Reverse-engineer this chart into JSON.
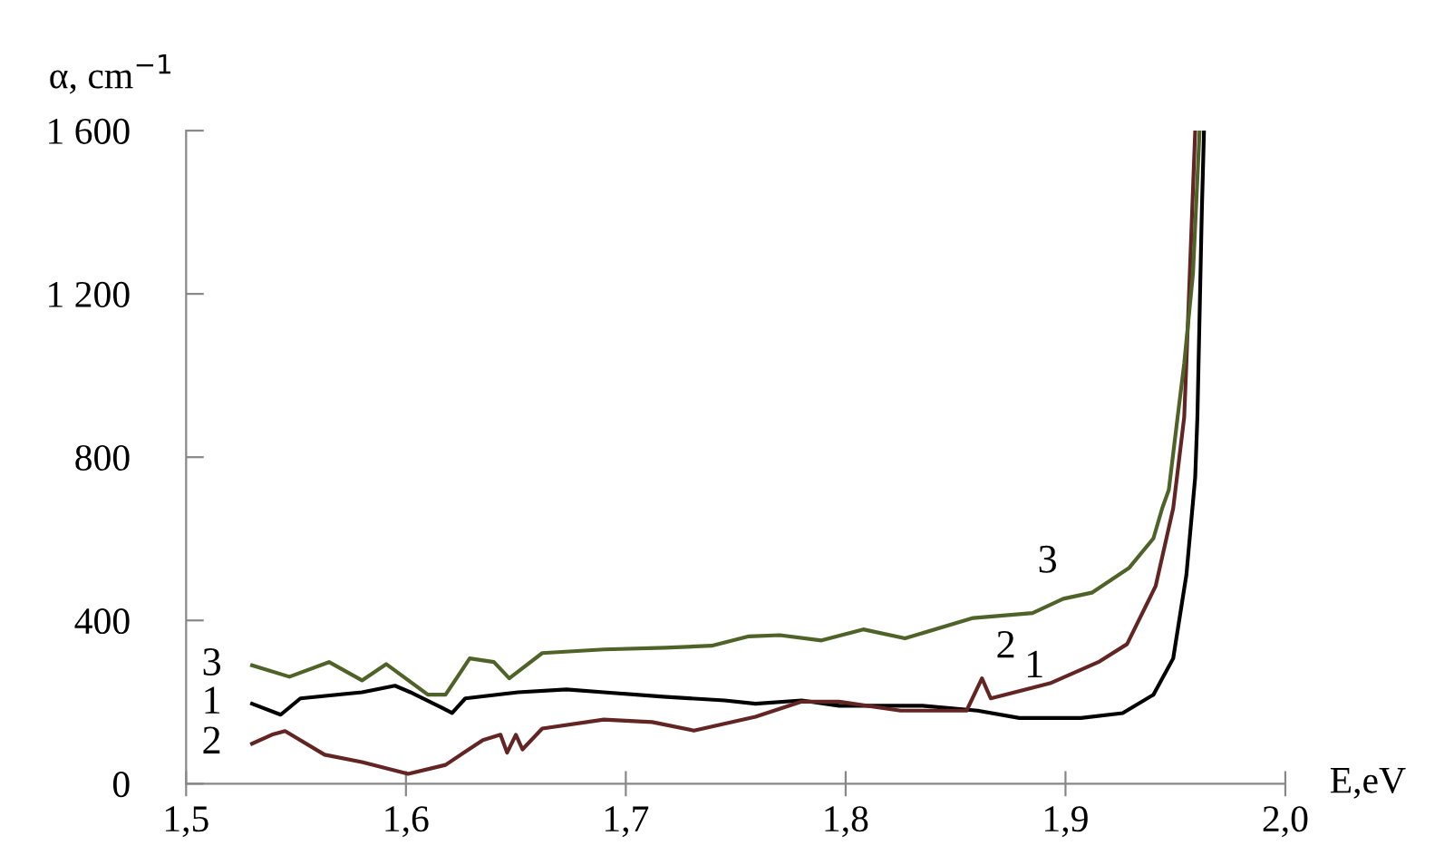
{
  "chart_data": {
    "type": "line",
    "xlabel": "E,eV",
    "ylabel": "α, cm$^{−1}$",
    "xlim": [
      1.5,
      2.0
    ],
    "ylim": [
      0,
      1600
    ],
    "xticks": [
      {
        "value": 1.5,
        "label": "1,5"
      },
      {
        "value": 1.6,
        "label": "1,6"
      },
      {
        "value": 1.7,
        "label": "1,7"
      },
      {
        "value": 1.8,
        "label": "1,8"
      },
      {
        "value": 1.9,
        "label": "1,9"
      },
      {
        "value": 2.0,
        "label": "2,0"
      }
    ],
    "yticks": [
      0,
      400,
      800,
      {
        "value": 1200,
        "label": "1 200"
      },
      {
        "value": 1600,
        "label": "1 600"
      }
    ],
    "grid": false,
    "legend": false,
    "marker": "none",
    "line_style": "solid",
    "series": [
      {
        "name": "1",
        "color": "#000000",
        "x": [
          1.53,
          1.543,
          1.552,
          1.58,
          1.595,
          1.602,
          1.616,
          1.621,
          1.627,
          1.651,
          1.673,
          1.69,
          1.717,
          1.745,
          1.759,
          1.78,
          1.797,
          1.835,
          1.86,
          1.879,
          1.907,
          1.926,
          1.94,
          1.949,
          1.955,
          1.959,
          1.96,
          1.962,
          1.963
        ],
        "values": [
          196,
          169,
          209,
          224,
          240,
          224,
          187,
          173,
          209,
          224,
          231,
          224,
          213,
          204,
          196,
          204,
          191,
          191,
          179,
          161,
          161,
          173,
          218,
          307,
          512,
          751,
          898,
          1400,
          1600
        ]
      },
      {
        "name": "2",
        "color": "#632523",
        "x": [
          1.53,
          1.539,
          1.545,
          1.563,
          1.58,
          1.601,
          1.618,
          1.635,
          1.643,
          1.646,
          1.65,
          1.653,
          1.662,
          1.69,
          1.712,
          1.731,
          1.759,
          1.78,
          1.797,
          1.825,
          1.855,
          1.862,
          1.866,
          1.893,
          1.915,
          1.928,
          1.941,
          1.949,
          1.954,
          1.955,
          1.959
        ],
        "values": [
          98,
          120,
          129,
          71,
          53,
          24,
          46,
          107,
          120,
          76,
          120,
          84,
          135,
          157,
          151,
          130,
          164,
          201,
          201,
          179,
          179,
          258,
          209,
          246,
          298,
          342,
          484,
          675,
          898,
          1031,
          1600
        ]
      },
      {
        "name": "3",
        "color": "#4f6228",
        "x": [
          1.53,
          1.547,
          1.565,
          1.58,
          1.591,
          1.61,
          1.618,
          1.629,
          1.64,
          1.647,
          1.662,
          1.69,
          1.718,
          1.739,
          1.756,
          1.77,
          1.789,
          1.808,
          1.827,
          1.858,
          1.885,
          1.899,
          1.912,
          1.929,
          1.94,
          1.944,
          1.947,
          1.951,
          1.954,
          1.958,
          1.961
        ],
        "values": [
          290,
          262,
          298,
          253,
          293,
          218,
          218,
          307,
          298,
          258,
          320,
          329,
          333,
          338,
          361,
          364,
          351,
          378,
          356,
          406,
          418,
          453,
          468,
          529,
          601,
          675,
          720,
          898,
          1030,
          1250,
          1600
        ]
      }
    ]
  }
}
